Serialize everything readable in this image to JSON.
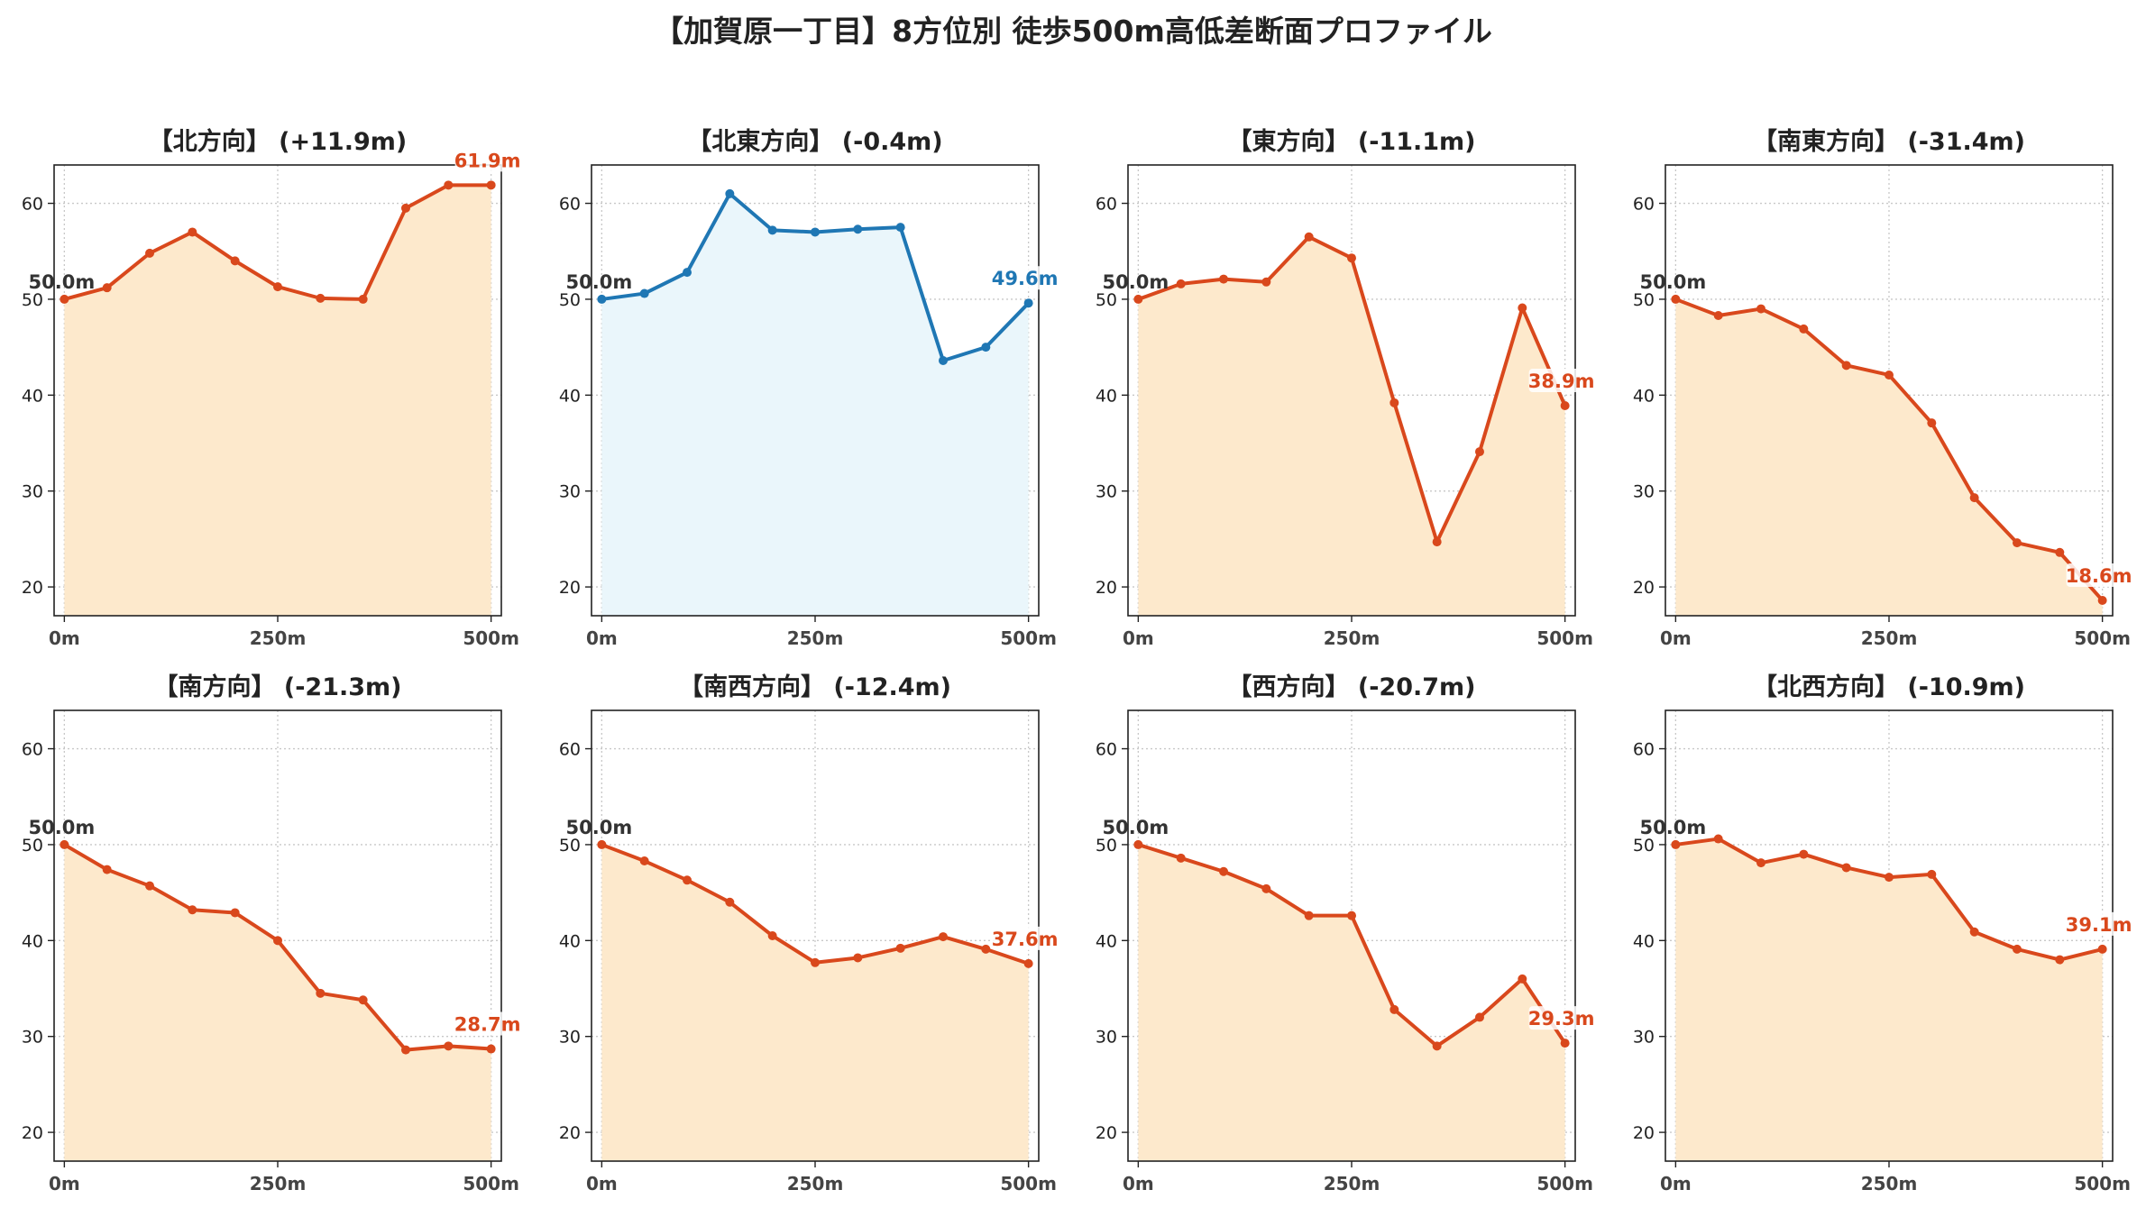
{
  "title": "【加賀原一丁目】8方位別 徒歩500m高低差断面プロファイル",
  "colors": {
    "down_line": "#d9481c",
    "down_fill": "#fde9cc",
    "up_line": "#d9481c",
    "up_fill": "#fde9cc",
    "flat_line": "#1f77b4",
    "flat_fill": "#eaf6fb",
    "grid": "#c8c8c8"
  },
  "chart_data": [
    {
      "type": "area",
      "title": "【北方向】 (+11.9m)",
      "style": "up",
      "x": [
        0,
        50,
        100,
        150,
        200,
        250,
        300,
        350,
        400,
        450,
        500
      ],
      "y": [
        50.0,
        51.2,
        54.8,
        57.0,
        54.0,
        51.3,
        50.1,
        50.0,
        59.5,
        61.9,
        61.9
      ],
      "ylim": [
        17,
        64
      ],
      "yticks": [
        20,
        30,
        40,
        50,
        60
      ],
      "xticks": [
        0,
        250,
        500
      ],
      "xtick_labels": [
        "0m",
        "250m",
        "500m"
      ],
      "start_label": "50.0m",
      "end_label": "61.9m"
    },
    {
      "type": "area",
      "title": "【北東方向】 (-0.4m)",
      "style": "flat",
      "x": [
        0,
        50,
        100,
        150,
        200,
        250,
        300,
        350,
        400,
        450,
        500
      ],
      "y": [
        50.0,
        50.6,
        52.8,
        61.0,
        57.2,
        57.0,
        57.3,
        57.5,
        43.6,
        45.0,
        49.6
      ],
      "ylim": [
        17,
        64
      ],
      "yticks": [
        20,
        30,
        40,
        50,
        60
      ],
      "xticks": [
        0,
        250,
        500
      ],
      "xtick_labels": [
        "0m",
        "250m",
        "500m"
      ],
      "start_label": "50.0m",
      "end_label": "49.6m"
    },
    {
      "type": "area",
      "title": "【東方向】 (-11.1m)",
      "style": "down",
      "x": [
        0,
        50,
        100,
        150,
        200,
        250,
        300,
        350,
        400,
        450,
        500
      ],
      "y": [
        50.0,
        51.6,
        52.1,
        51.8,
        56.5,
        54.3,
        39.2,
        24.7,
        34.1,
        49.1,
        38.9
      ],
      "ylim": [
        17,
        64
      ],
      "yticks": [
        20,
        30,
        40,
        50,
        60
      ],
      "xticks": [
        0,
        250,
        500
      ],
      "xtick_labels": [
        "0m",
        "250m",
        "500m"
      ],
      "start_label": "50.0m",
      "end_label": "38.9m"
    },
    {
      "type": "area",
      "title": "【南東方向】 (-31.4m)",
      "style": "down",
      "x": [
        0,
        50,
        100,
        150,
        200,
        250,
        300,
        350,
        400,
        450,
        500
      ],
      "y": [
        50.0,
        48.3,
        49.0,
        46.9,
        43.1,
        42.1,
        37.1,
        29.3,
        24.6,
        23.6,
        18.6
      ],
      "ylim": [
        17,
        64
      ],
      "yticks": [
        20,
        30,
        40,
        50,
        60
      ],
      "xticks": [
        0,
        250,
        500
      ],
      "xtick_labels": [
        "0m",
        "250m",
        "500m"
      ],
      "start_label": "50.0m",
      "end_label": "18.6m"
    },
    {
      "type": "area",
      "title": "【南方向】 (-21.3m)",
      "style": "down",
      "x": [
        0,
        50,
        100,
        150,
        200,
        250,
        300,
        350,
        400,
        450,
        500
      ],
      "y": [
        50.0,
        47.4,
        45.7,
        43.2,
        42.9,
        40.0,
        34.5,
        33.8,
        28.6,
        29.0,
        28.7
      ],
      "ylim": [
        17,
        64
      ],
      "yticks": [
        20,
        30,
        40,
        50,
        60
      ],
      "xticks": [
        0,
        250,
        500
      ],
      "xtick_labels": [
        "0m",
        "250m",
        "500m"
      ],
      "start_label": "50.0m",
      "end_label": "28.7m"
    },
    {
      "type": "area",
      "title": "【南西方向】 (-12.4m)",
      "style": "down",
      "x": [
        0,
        50,
        100,
        150,
        200,
        250,
        300,
        350,
        400,
        450,
        500
      ],
      "y": [
        50.0,
        48.3,
        46.3,
        44.0,
        40.5,
        37.7,
        38.2,
        39.2,
        40.4,
        39.1,
        37.6
      ],
      "ylim": [
        17,
        64
      ],
      "yticks": [
        20,
        30,
        40,
        50,
        60
      ],
      "xticks": [
        0,
        250,
        500
      ],
      "xtick_labels": [
        "0m",
        "250m",
        "500m"
      ],
      "start_label": "50.0m",
      "end_label": "37.6m"
    },
    {
      "type": "area",
      "title": "【西方向】 (-20.7m)",
      "style": "down",
      "x": [
        0,
        50,
        100,
        150,
        200,
        250,
        300,
        350,
        400,
        450,
        500
      ],
      "y": [
        50.0,
        48.6,
        47.2,
        45.4,
        42.6,
        42.6,
        32.8,
        29.0,
        32.0,
        36.0,
        29.3
      ],
      "ylim": [
        17,
        64
      ],
      "yticks": [
        20,
        30,
        40,
        50,
        60
      ],
      "xticks": [
        0,
        250,
        500
      ],
      "xtick_labels": [
        "0m",
        "250m",
        "500m"
      ],
      "start_label": "50.0m",
      "end_label": "29.3m"
    },
    {
      "type": "area",
      "title": "【北西方向】 (-10.9m)",
      "style": "down",
      "x": [
        0,
        50,
        100,
        150,
        200,
        250,
        300,
        350,
        400,
        450,
        500
      ],
      "y": [
        50.0,
        50.6,
        48.1,
        49.0,
        47.6,
        46.6,
        46.9,
        40.9,
        39.1,
        38.0,
        39.1
      ],
      "ylim": [
        17,
        64
      ],
      "yticks": [
        20,
        30,
        40,
        50,
        60
      ],
      "xticks": [
        0,
        250,
        500
      ],
      "xtick_labels": [
        "0m",
        "250m",
        "500m"
      ],
      "start_label": "50.0m",
      "end_label": "39.1m"
    }
  ]
}
